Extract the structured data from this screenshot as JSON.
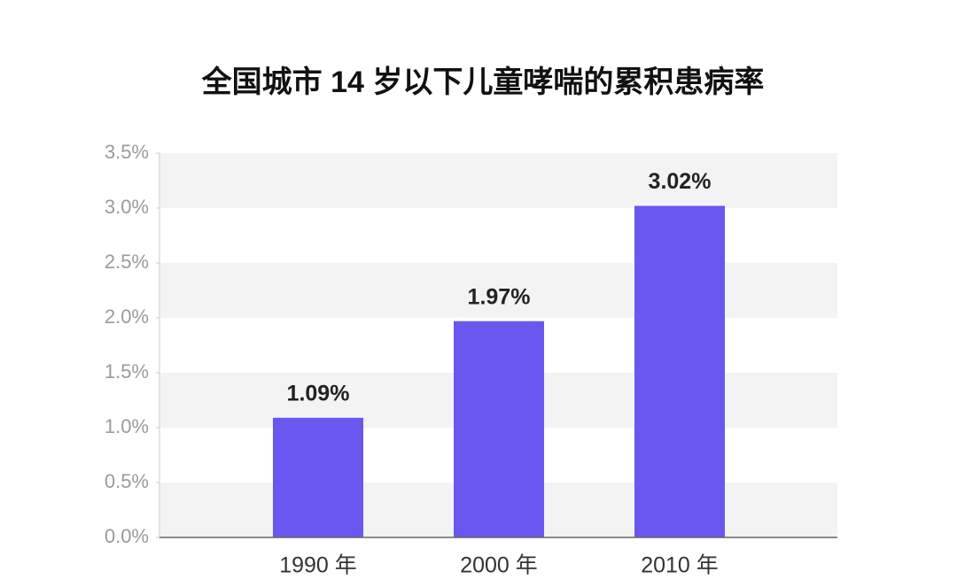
{
  "chart_data": {
    "type": "bar",
    "title": "全国城市 14 岁以下儿童哮喘的累积患病率",
    "categories": [
      "1990 年",
      "2000 年",
      "2010 年"
    ],
    "values": [
      1.09,
      1.97,
      3.02
    ],
    "value_labels": [
      "1.09%",
      "1.97%",
      "3.02%"
    ],
    "color": "#6a57f0",
    "ylim": [
      0,
      3.5
    ],
    "yticks": [
      {
        "value": 0,
        "label": "0.0%"
      },
      {
        "value": 0.5,
        "label": "0.5%"
      },
      {
        "value": 1,
        "label": "1.0%"
      },
      {
        "value": 1.5,
        "label": "1.5%"
      },
      {
        "value": 2,
        "label": "2.0%"
      },
      {
        "value": 2.5,
        "label": "2.5%"
      },
      {
        "value": 3,
        "label": "3.0%"
      },
      {
        "value": 3.5,
        "label": "3.5%"
      }
    ],
    "grid": true
  }
}
